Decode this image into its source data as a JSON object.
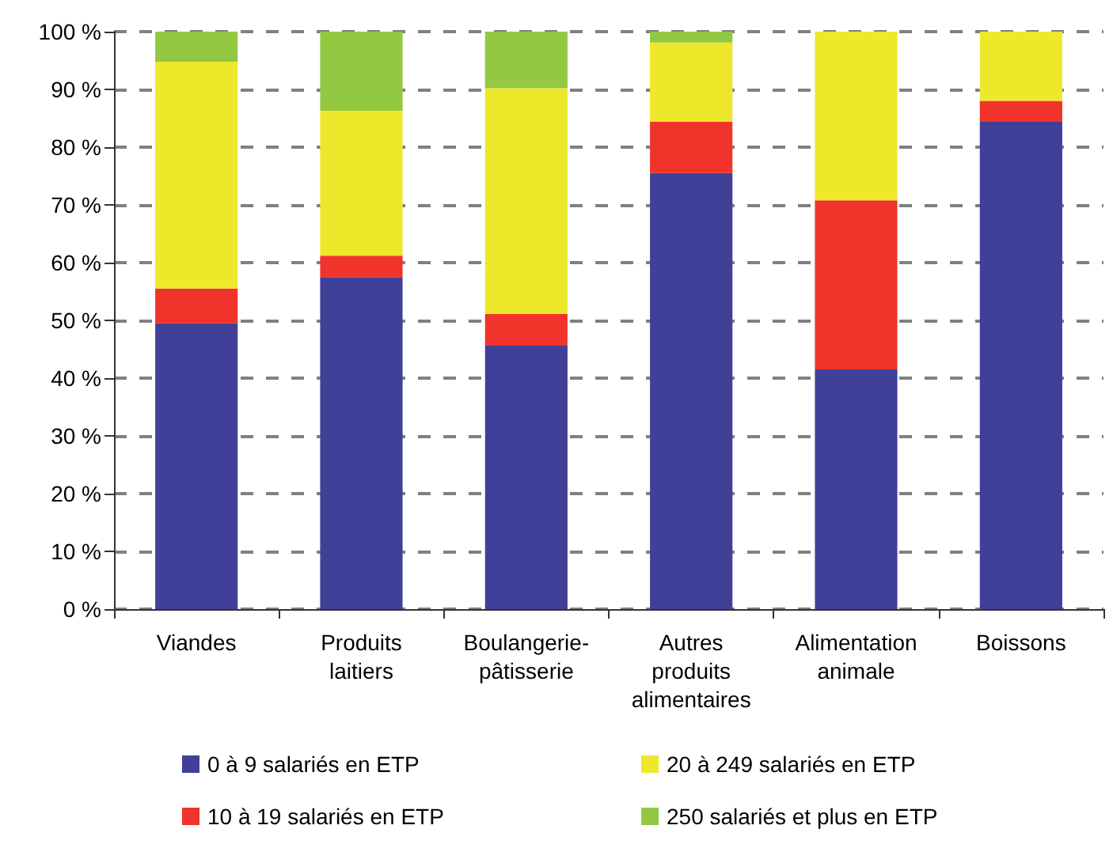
{
  "chart_data": {
    "type": "bar",
    "stacked": true,
    "categories": [
      "Viandes",
      "Produits\nlaitiers",
      "Boulangerie-\npâtisserie",
      "Autres\nproduits\nalimentaires",
      "Alimentation\nanimale",
      "Boissons"
    ],
    "series": [
      {
        "name": "0 à 9 salariés en ETP",
        "color": "#404099",
        "values": [
          49.5,
          57.5,
          45.6,
          75.5,
          41.5,
          84.4
        ]
      },
      {
        "name": "10 à 19 salariés en ETP",
        "color": "#f0342b",
        "values": [
          6.0,
          3.7,
          5.5,
          8.9,
          29.3,
          3.6
        ]
      },
      {
        "name": "20 à 249 salariés en ETP",
        "color": "#eee82a",
        "values": [
          39.3,
          25.1,
          39.1,
          13.7,
          29.2,
          12.0
        ]
      },
      {
        "name": "250 salariés et plus en ETP",
        "color": "#93c842",
        "values": [
          5.2,
          13.7,
          9.8,
          1.9,
          0,
          0
        ]
      }
    ],
    "ylim": [
      0,
      100
    ],
    "yticks": [
      {
        "value": 0,
        "label": "0 %"
      },
      {
        "value": 10,
        "label": "10 %"
      },
      {
        "value": 20,
        "label": "20 %"
      },
      {
        "value": 30,
        "label": "30 %"
      },
      {
        "value": 40,
        "label": "40 %"
      },
      {
        "value": 50,
        "label": "50 %"
      },
      {
        "value": 60,
        "label": "60 %"
      },
      {
        "value": 70,
        "label": "70 %"
      },
      {
        "value": 80,
        "label": "80 %"
      },
      {
        "value": 90,
        "label": "90 %"
      },
      {
        "value": 100,
        "label": "100 %"
      }
    ],
    "grid": "y",
    "legend": "bottom"
  }
}
